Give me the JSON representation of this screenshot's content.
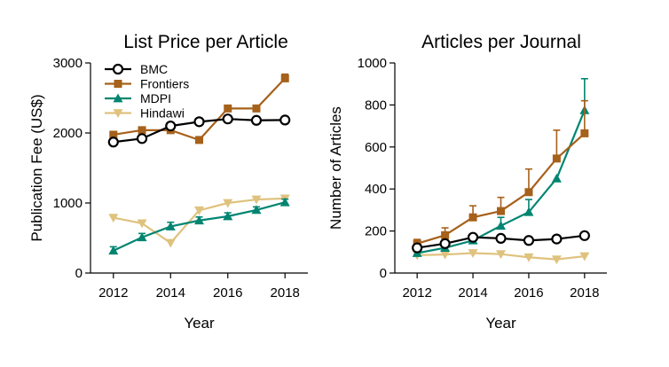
{
  "colors": {
    "BMC": "#000000",
    "Frontiers": "#a6611a",
    "MDPI": "#018571",
    "Hindawi": "#dfc27d"
  },
  "chart_data": [
    {
      "type": "line",
      "title": "List Price per Article",
      "xlabel": "Year",
      "ylabel": "Publication Fee (US$)",
      "x": [
        2012,
        2013,
        2014,
        2015,
        2016,
        2017,
        2018
      ],
      "xlim": [
        2011.2,
        2018.8
      ],
      "ylim": [
        0,
        3000
      ],
      "xticks": [
        "2012",
        "2014",
        "2016",
        "2018"
      ],
      "yticks": [
        "0",
        "1000",
        "2000",
        "3000"
      ],
      "legend": "top-left",
      "series": [
        {
          "name": "BMC",
          "marker": "circle",
          "values": [
            1870,
            1920,
            2100,
            2160,
            2200,
            2180,
            2185
          ],
          "err": [
            0,
            0,
            0,
            0,
            0,
            0,
            0
          ]
        },
        {
          "name": "Frontiers",
          "marker": "square",
          "values": [
            1975,
            2040,
            2040,
            1900,
            2350,
            2350,
            2780
          ],
          "err": [
            0,
            0,
            0,
            0,
            0,
            0,
            60
          ]
        },
        {
          "name": "MDPI",
          "marker": "triangle-up",
          "values": [
            320,
            510,
            665,
            750,
            810,
            900,
            1010
          ],
          "err": [
            55,
            55,
            60,
            50,
            50,
            45,
            45
          ]
        },
        {
          "name": "Hindawi",
          "marker": "triangle-down",
          "values": [
            790,
            710,
            430,
            895,
            1000,
            1050,
            1065
          ],
          "err": [
            0,
            0,
            0,
            0,
            0,
            0,
            0
          ]
        }
      ]
    },
    {
      "type": "line",
      "title": "Articles per Journal",
      "xlabel": "Year",
      "ylabel": "Number of Articles",
      "x": [
        2012,
        2013,
        2014,
        2015,
        2016,
        2017,
        2018
      ],
      "xlim": [
        2011.2,
        2018.8
      ],
      "ylim": [
        0,
        1000
      ],
      "xticks": [
        "2012",
        "2014",
        "2016",
        "2018"
      ],
      "yticks": [
        "0",
        "200",
        "400",
        "600",
        "800",
        "1000"
      ],
      "series": [
        {
          "name": "BMC",
          "marker": "circle",
          "values": [
            120,
            140,
            170,
            165,
            155,
            162,
            178
          ],
          "err": [
            10,
            12,
            15,
            12,
            10,
            12,
            15
          ]
        },
        {
          "name": "Frontiers",
          "marker": "square",
          "values": [
            140,
            180,
            265,
            295,
            385,
            545,
            665
          ],
          "err": [
            20,
            35,
            55,
            65,
            110,
            135,
            155
          ]
        },
        {
          "name": "MDPI",
          "marker": "triangle-up",
          "values": [
            95,
            120,
            155,
            225,
            290,
            450,
            775
          ],
          "err": [
            15,
            20,
            25,
            40,
            60,
            0,
            150
          ]
        },
        {
          "name": "Hindawi",
          "marker": "triangle-down",
          "values": [
            85,
            88,
            95,
            90,
            75,
            65,
            80
          ],
          "err": [
            8,
            10,
            12,
            12,
            10,
            8,
            8
          ]
        }
      ]
    }
  ]
}
